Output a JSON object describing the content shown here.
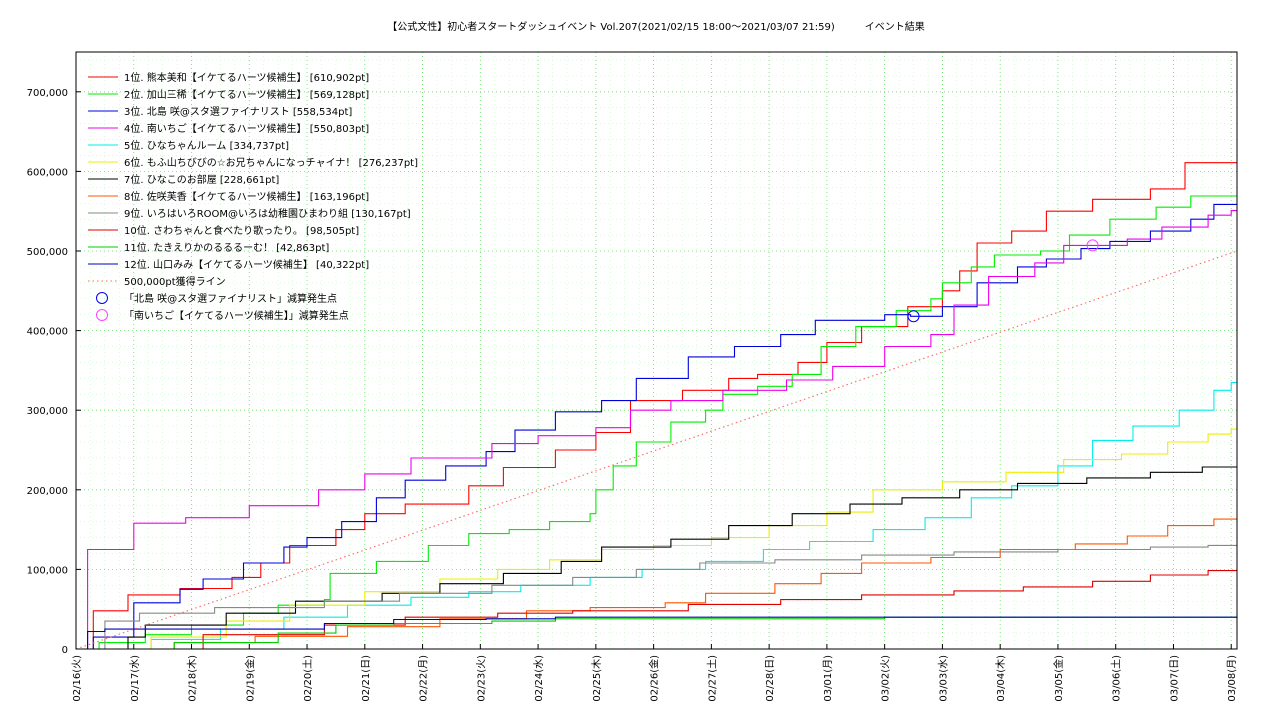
{
  "chart_data": {
    "type": "line",
    "title": "【公式文性】初心者スタートダッシュイベント Vol.207(2021/02/15 18:00〜2021/03/07 21:59)　　　イベント結果",
    "xlabel": "",
    "ylabel": "",
    "x_ticks": [
      "02/16(火)",
      "02/17(水)",
      "02/18(木)",
      "02/19(金)",
      "02/20(土)",
      "02/21(日)",
      "02/22(月)",
      "02/23(火)",
      "02/24(水)",
      "02/25(木)",
      "02/26(金)",
      "02/27(土)",
      "02/28(日)",
      "03/01(月)",
      "03/02(火)",
      "03/03(水)",
      "03/04(木)",
      "03/05(金)",
      "03/06(土)",
      "03/07(日)",
      "03/08(月)"
    ],
    "x_range_days": [
      0,
      20.1
    ],
    "y_ticks": [
      "0",
      "100,000",
      "200,000",
      "300,000",
      "400,000",
      "500,000",
      "600,000",
      "700,000"
    ],
    "ylim": [
      0,
      750000
    ],
    "grid": true,
    "legend_position": "top-left",
    "series": [
      {
        "name": "1位. 熊本美和【イケてるハーツ候補生】 [610,902pt]",
        "color": "#ff0000",
        "points": [
          [
            0,
            0
          ],
          [
            0.3,
            48000
          ],
          [
            0.9,
            68000
          ],
          [
            1.8,
            76000
          ],
          [
            2.7,
            90000
          ],
          [
            3.2,
            108000
          ],
          [
            3.7,
            130000
          ],
          [
            4.5,
            150000
          ],
          [
            5.0,
            170000
          ],
          [
            5.7,
            182000
          ],
          [
            6.8,
            205000
          ],
          [
            7.4,
            228000
          ],
          [
            8.3,
            250000
          ],
          [
            9.0,
            272000
          ],
          [
            9.6,
            312000
          ],
          [
            10.5,
            325000
          ],
          [
            11.3,
            340000
          ],
          [
            11.8,
            345000
          ],
          [
            12.5,
            360000
          ],
          [
            13.0,
            385000
          ],
          [
            13.6,
            405000
          ],
          [
            14.4,
            430000
          ],
          [
            15.0,
            450000
          ],
          [
            15.3,
            475000
          ],
          [
            15.6,
            510000
          ],
          [
            16.2,
            525000
          ],
          [
            16.8,
            550000
          ],
          [
            17.6,
            565000
          ],
          [
            18.6,
            578000
          ],
          [
            19.2,
            610902
          ],
          [
            20.1,
            610902
          ]
        ]
      },
      {
        "name": "2位. 加山三稀【イケてるハーツ候補生】 [569,128pt]",
        "color": "#00ee00",
        "points": [
          [
            0,
            0
          ],
          [
            0.4,
            8000
          ],
          [
            1.2,
            18000
          ],
          [
            2.0,
            30000
          ],
          [
            2.9,
            45000
          ],
          [
            3.5,
            55000
          ],
          [
            4.3,
            62000
          ],
          [
            4.4,
            95000
          ],
          [
            5.2,
            110000
          ],
          [
            6.1,
            130000
          ],
          [
            6.8,
            145000
          ],
          [
            7.5,
            150000
          ],
          [
            8.2,
            160000
          ],
          [
            8.9,
            170000
          ],
          [
            9.0,
            200000
          ],
          [
            9.3,
            230000
          ],
          [
            9.7,
            260000
          ],
          [
            10.3,
            285000
          ],
          [
            10.9,
            300000
          ],
          [
            11.2,
            320000
          ],
          [
            11.8,
            330000
          ],
          [
            12.4,
            345000
          ],
          [
            12.9,
            380000
          ],
          [
            13.5,
            405000
          ],
          [
            14.2,
            425000
          ],
          [
            14.8,
            440000
          ],
          [
            15.0,
            460000
          ],
          [
            15.5,
            480000
          ],
          [
            15.9,
            495000
          ],
          [
            16.7,
            500000
          ],
          [
            17.2,
            520000
          ],
          [
            17.9,
            540000
          ],
          [
            18.7,
            555000
          ],
          [
            19.3,
            569128
          ],
          [
            20.1,
            569128
          ]
        ]
      },
      {
        "name": "3位. 北島 咲@スタ選ファイナリスト [558,534pt]",
        "color": "#0000dd",
        "points": [
          [
            0,
            0
          ],
          [
            0.3,
            15000
          ],
          [
            1.0,
            58000
          ],
          [
            1.8,
            75000
          ],
          [
            2.2,
            88000
          ],
          [
            2.9,
            108000
          ],
          [
            3.6,
            128000
          ],
          [
            4.0,
            140000
          ],
          [
            4.6,
            160000
          ],
          [
            5.2,
            190000
          ],
          [
            5.7,
            212000
          ],
          [
            6.4,
            230000
          ],
          [
            7.1,
            248000
          ],
          [
            7.6,
            275000
          ],
          [
            8.3,
            298000
          ],
          [
            9.1,
            312000
          ],
          [
            9.7,
            340000
          ],
          [
            10.6,
            367000
          ],
          [
            11.4,
            380000
          ],
          [
            12.2,
            395000
          ],
          [
            12.8,
            413000
          ],
          [
            14.0,
            420000
          ],
          [
            14.45,
            418000
          ],
          [
            15.0,
            430000
          ],
          [
            15.6,
            460000
          ],
          [
            16.3,
            480000
          ],
          [
            16.8,
            490000
          ],
          [
            17.4,
            503000
          ],
          [
            17.9,
            512000
          ],
          [
            18.6,
            525000
          ],
          [
            19.3,
            540000
          ],
          [
            19.7,
            558534
          ],
          [
            20.1,
            558534
          ]
        ]
      },
      {
        "name": "4位. 南いちご【イケてるハーツ候補生】 [550,803pt]",
        "color": "#ee00ee",
        "points": [
          [
            0,
            0
          ],
          [
            0.2,
            125000
          ],
          [
            1.0,
            158000
          ],
          [
            1.9,
            165000
          ],
          [
            3.0,
            180000
          ],
          [
            4.2,
            200000
          ],
          [
            5.0,
            220000
          ],
          [
            5.8,
            240000
          ],
          [
            6.9,
            240000
          ],
          [
            7.2,
            258000
          ],
          [
            8.0,
            268000
          ],
          [
            9.0,
            278000
          ],
          [
            9.6,
            300000
          ],
          [
            10.3,
            312000
          ],
          [
            11.2,
            325000
          ],
          [
            12.3,
            338000
          ],
          [
            13.1,
            355000
          ],
          [
            14.0,
            380000
          ],
          [
            14.8,
            395000
          ],
          [
            15.2,
            432000
          ],
          [
            15.8,
            468000
          ],
          [
            16.6,
            485000
          ],
          [
            17.1,
            507000
          ],
          [
            17.6,
            507000
          ],
          [
            18.2,
            515000
          ],
          [
            18.8,
            530000
          ],
          [
            19.6,
            545000
          ],
          [
            20.0,
            550803
          ],
          [
            20.1,
            550803
          ]
        ]
      },
      {
        "name": "5位. ひなちゃんルーム [334,737pt]",
        "color": "#00eeee",
        "points": [
          [
            0,
            0
          ],
          [
            1.3,
            12000
          ],
          [
            2.5,
            25000
          ],
          [
            3.6,
            40000
          ],
          [
            4.7,
            55000
          ],
          [
            5.8,
            65000
          ],
          [
            6.8,
            72000
          ],
          [
            7.7,
            80000
          ],
          [
            8.9,
            90000
          ],
          [
            9.8,
            100000
          ],
          [
            10.9,
            110000
          ],
          [
            11.9,
            125000
          ],
          [
            12.7,
            135000
          ],
          [
            13.8,
            150000
          ],
          [
            14.7,
            165000
          ],
          [
            15.5,
            190000
          ],
          [
            16.2,
            205000
          ],
          [
            17.0,
            230000
          ],
          [
            17.6,
            262000
          ],
          [
            18.3,
            280000
          ],
          [
            19.1,
            300000
          ],
          [
            19.7,
            325000
          ],
          [
            20.0,
            334737
          ],
          [
            20.1,
            334737
          ]
        ]
      },
      {
        "name": "6位. もふ山ちびびの☆お兄ちゃんになっチャイナ！ [276,237pt]",
        "color": "#eeee00",
        "points": [
          [
            0,
            0
          ],
          [
            1.3,
            15000
          ],
          [
            2.6,
            35000
          ],
          [
            3.7,
            55000
          ],
          [
            5.0,
            72000
          ],
          [
            6.3,
            88000
          ],
          [
            7.3,
            100000
          ],
          [
            8.2,
            112000
          ],
          [
            9.1,
            125000
          ],
          [
            10.0,
            130000
          ],
          [
            11.0,
            140000
          ],
          [
            12.0,
            155000
          ],
          [
            13.0,
            172000
          ],
          [
            13.8,
            200000
          ],
          [
            15.0,
            210000
          ],
          [
            16.1,
            222000
          ],
          [
            17.1,
            238000
          ],
          [
            18.1,
            245000
          ],
          [
            18.9,
            260000
          ],
          [
            19.6,
            270000
          ],
          [
            20.0,
            276237
          ],
          [
            20.1,
            276237
          ]
        ]
      },
      {
        "name": "7位. ひなこのお部屋 [228,661pt]",
        "color": "#000000",
        "points": [
          [
            0,
            0
          ],
          [
            0.9,
            15000
          ],
          [
            1.2,
            30000
          ],
          [
            2.6,
            45000
          ],
          [
            3.8,
            60000
          ],
          [
            5.3,
            70000
          ],
          [
            6.3,
            82000
          ],
          [
            7.4,
            95000
          ],
          [
            8.4,
            110000
          ],
          [
            9.1,
            128000
          ],
          [
            10.3,
            138000
          ],
          [
            11.3,
            155000
          ],
          [
            12.4,
            170000
          ],
          [
            13.4,
            182000
          ],
          [
            14.3,
            190000
          ],
          [
            15.3,
            200000
          ],
          [
            16.3,
            208000
          ],
          [
            17.5,
            215000
          ],
          [
            18.6,
            222000
          ],
          [
            19.5,
            228661
          ],
          [
            20.1,
            228661
          ]
        ]
      },
      {
        "name": "8位. 佐咲芙香【イケてるハーツ候補生】 [163,196pt]",
        "color": "#ff5500",
        "points": [
          [
            0,
            0
          ],
          [
            1.7,
            8000
          ],
          [
            3.1,
            16000
          ],
          [
            4.7,
            28000
          ],
          [
            6.3,
            38000
          ],
          [
            7.8,
            48000
          ],
          [
            8.9,
            52000
          ],
          [
            10.2,
            58000
          ],
          [
            10.9,
            70000
          ],
          [
            12.1,
            82000
          ],
          [
            12.9,
            95000
          ],
          [
            13.6,
            108000
          ],
          [
            14.8,
            115000
          ],
          [
            16.0,
            125000
          ],
          [
            17.3,
            132000
          ],
          [
            18.2,
            142000
          ],
          [
            18.9,
            155000
          ],
          [
            19.7,
            163196
          ],
          [
            20.1,
            163196
          ]
        ]
      },
      {
        "name": "9位. いろはいろROOM@いろは幼稚園ひまわり組 [130,167pt]",
        "color": "#888888",
        "points": [
          [
            0,
            0
          ],
          [
            0.5,
            35000
          ],
          [
            1.1,
            45000
          ],
          [
            2.4,
            52000
          ],
          [
            4.3,
            60000
          ],
          [
            5.6,
            70000
          ],
          [
            7.2,
            80000
          ],
          [
            8.6,
            90000
          ],
          [
            9.7,
            100000
          ],
          [
            10.8,
            108000
          ],
          [
            12.1,
            112000
          ],
          [
            13.6,
            118000
          ],
          [
            15.2,
            122000
          ],
          [
            17.0,
            125000
          ],
          [
            18.6,
            128000
          ],
          [
            19.6,
            130167
          ],
          [
            20.1,
            130167
          ]
        ]
      },
      {
        "name": "10位. さわちゃんと食べたり歌ったり。 [98,505pt]",
        "color": "#dd0000",
        "points": [
          [
            0,
            0
          ],
          [
            2.2,
            18000
          ],
          [
            4.3,
            30000
          ],
          [
            5.7,
            40000
          ],
          [
            7.3,
            45000
          ],
          [
            8.6,
            48000
          ],
          [
            10.6,
            56000
          ],
          [
            12.2,
            62000
          ],
          [
            13.6,
            68000
          ],
          [
            15.2,
            73000
          ],
          [
            16.4,
            78000
          ],
          [
            17.6,
            85000
          ],
          [
            18.6,
            93000
          ],
          [
            19.6,
            98505
          ],
          [
            20.1,
            98505
          ]
        ]
      },
      {
        "name": "11位. たきえりかのるるるーむ！ [42,863pt]",
        "color": "#00cc00",
        "points": [
          [
            0,
            0
          ],
          [
            1.7,
            8000
          ],
          [
            3.5,
            20000
          ],
          [
            4.5,
            30000
          ],
          [
            5.5,
            32000
          ],
          [
            7.2,
            35000
          ],
          [
            8.3,
            38000
          ],
          [
            9.6,
            38000
          ],
          [
            14.0,
            40000
          ],
          [
            20.1,
            42863
          ]
        ]
      },
      {
        "name": "12位. 山口みみ【イケてるハーツ候補生】 [40,322pt]",
        "color": "#0000bb",
        "points": [
          [
            0,
            0
          ],
          [
            0.2,
            22000
          ],
          [
            0.5,
            25000
          ],
          [
            4.3,
            32000
          ],
          [
            5.5,
            37000
          ],
          [
            7.1,
            38000
          ],
          [
            8.3,
            40000
          ],
          [
            20.1,
            40322
          ]
        ]
      },
      {
        "name": "500,000pt獲得ライン",
        "color": "#ff6666",
        "dashed": true,
        "points": [
          [
            0,
            0
          ],
          [
            20.1,
            500000
          ]
        ]
      }
    ],
    "markers": [
      {
        "name": "「北島 咲@スタ選ファイナリスト」減算発生点",
        "color": "#0000ff",
        "x": 14.5,
        "y": 418000
      },
      {
        "name": "「南いちご【イケてるハーツ候補生】」減算発生点",
        "color": "#ff44ff",
        "x": 17.6,
        "y": 507000
      }
    ]
  }
}
